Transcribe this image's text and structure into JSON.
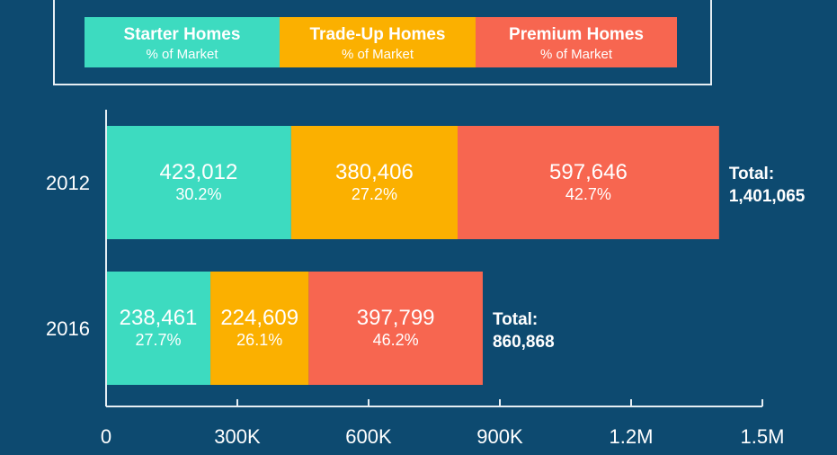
{
  "chart_data": {
    "type": "bar",
    "orientation": "horizontal",
    "stacked": true,
    "categories": [
      "2012",
      "2016"
    ],
    "series": [
      {
        "name": "Starter Homes",
        "sublabel": "% of Market",
        "color": "#3ddbc0",
        "values": [
          423012,
          238461
        ],
        "value_labels": [
          "423,012",
          "238,461"
        ],
        "percent_labels": [
          "30.2%",
          "27.7%"
        ]
      },
      {
        "name": "Trade-Up Homes",
        "sublabel": "% of Market",
        "color": "#fbb000",
        "values": [
          380406,
          224609
        ],
        "value_labels": [
          "380,406",
          "224,609"
        ],
        "percent_labels": [
          "27.2%",
          "26.1%"
        ]
      },
      {
        "name": "Premium Homes",
        "sublabel": "% of Market",
        "color": "#f76650",
        "values": [
          597646,
          397799
        ],
        "value_labels": [
          "597,646",
          "397,799"
        ],
        "percent_labels": [
          "42.7%",
          "46.2%"
        ]
      }
    ],
    "totals": [
      {
        "label": "Total:",
        "value_label": "1,401,065",
        "value": 1401065
      },
      {
        "label": "Total:",
        "value_label": "860,868",
        "value": 860868
      }
    ],
    "xlim": [
      0,
      1500000
    ],
    "xticks": [
      0,
      300000,
      600000,
      900000,
      1200000,
      1500000
    ],
    "xtick_labels": [
      "0",
      "300K",
      "600K",
      "900K",
      "1.2M",
      "1.5M"
    ],
    "grid": false,
    "legend_position": "top",
    "title": "",
    "xlabel": "",
    "ylabel": ""
  }
}
